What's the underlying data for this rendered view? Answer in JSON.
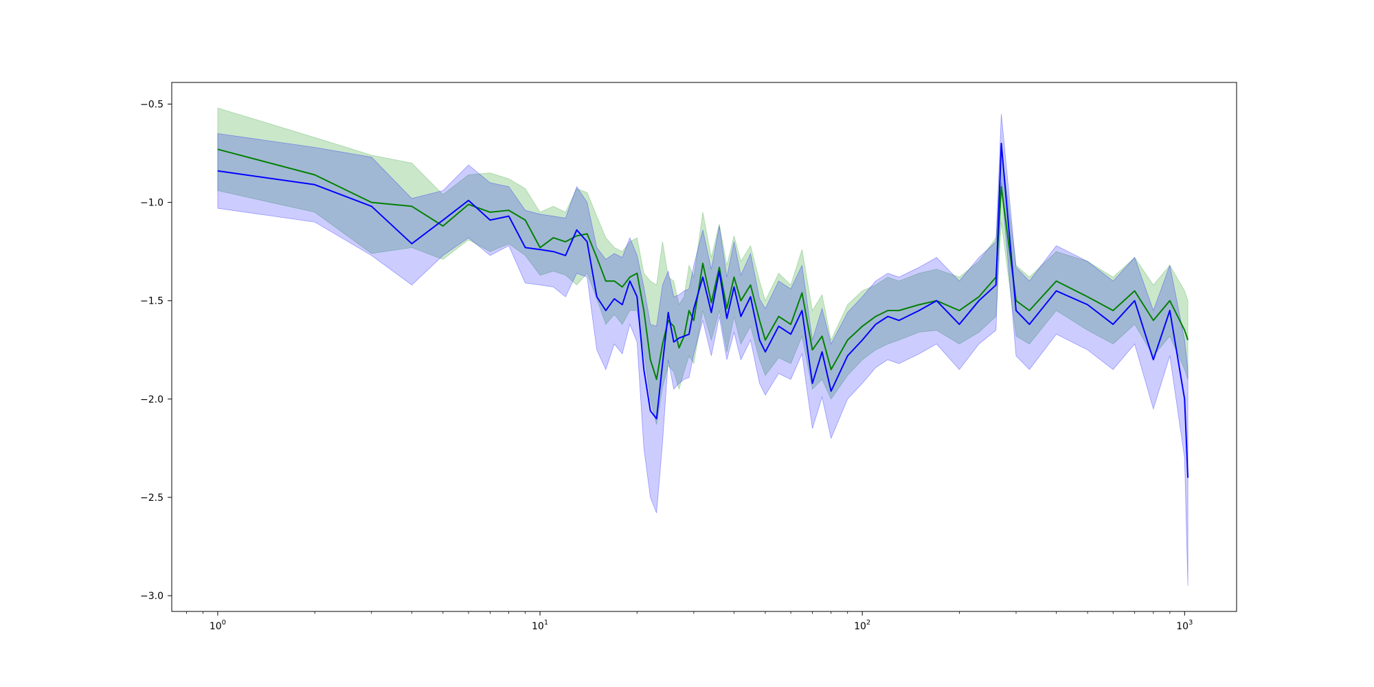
{
  "chart_data": {
    "type": "line",
    "xscale": "log",
    "xlim": [
      0.72,
      1450
    ],
    "ylim": [
      -3.08,
      -0.39
    ],
    "grid": false,
    "title": "",
    "xlabel": "",
    "ylabel": "",
    "x_ticks": [
      {
        "base": "10",
        "exp": "0",
        "value": 1
      },
      {
        "base": "10",
        "exp": "1",
        "value": 10
      },
      {
        "base": "10",
        "exp": "2",
        "value": 100
      },
      {
        "base": "10",
        "exp": "3",
        "value": 1000
      }
    ],
    "y_ticks": [
      {
        "label": "−0.5",
        "value": -0.5
      },
      {
        "label": "−1.0",
        "value": -1.0
      },
      {
        "label": "−1.5",
        "value": -1.5
      },
      {
        "label": "−2.0",
        "value": -2.0
      },
      {
        "label": "−2.5",
        "value": -2.5
      },
      {
        "label": "−3.0",
        "value": -3.0
      }
    ],
    "series": [
      {
        "color": "#008000",
        "band_color": "#2ca02c",
        "band_opacity": 0.25,
        "x": [
          1,
          2,
          3,
          4,
          5,
          6,
          7,
          8,
          9,
          10,
          11,
          12,
          13,
          14,
          15,
          16,
          17,
          18,
          19,
          20,
          21,
          22,
          23,
          24,
          25,
          26,
          27,
          28,
          29,
          30,
          32,
          34,
          36,
          38,
          40,
          42,
          45,
          48,
          50,
          55,
          60,
          65,
          70,
          75,
          80,
          90,
          100,
          110,
          120,
          130,
          150,
          170,
          200,
          230,
          260,
          270,
          300,
          330,
          400,
          500,
          600,
          700,
          800,
          900,
          1000,
          1024
        ],
        "y": [
          -0.73,
          -0.86,
          -1.0,
          -1.02,
          -1.12,
          -1.01,
          -1.05,
          -1.04,
          -1.09,
          -1.23,
          -1.18,
          -1.2,
          -1.17,
          -1.16,
          -1.28,
          -1.4,
          -1.4,
          -1.43,
          -1.38,
          -1.36,
          -1.55,
          -1.8,
          -1.9,
          -1.72,
          -1.6,
          -1.63,
          -1.74,
          -1.68,
          -1.55,
          -1.6,
          -1.31,
          -1.51,
          -1.33,
          -1.54,
          -1.38,
          -1.5,
          -1.42,
          -1.6,
          -1.7,
          -1.58,
          -1.62,
          -1.46,
          -1.75,
          -1.68,
          -1.85,
          -1.7,
          -1.63,
          -1.58,
          -1.55,
          -1.55,
          -1.52,
          -1.5,
          -1.55,
          -1.48,
          -1.38,
          -0.92,
          -1.5,
          -1.55,
          -1.4,
          -1.48,
          -1.55,
          -1.45,
          -1.6,
          -1.5,
          -1.65,
          -1.7
        ],
        "lower": [
          -0.94,
          -1.05,
          -1.26,
          -1.23,
          -1.29,
          -1.19,
          -1.25,
          -1.21,
          -1.27,
          -1.37,
          -1.35,
          -1.37,
          -1.42,
          -1.36,
          -1.49,
          -1.62,
          -1.57,
          -1.62,
          -1.55,
          -1.55,
          -1.76,
          -2.0,
          -2.13,
          -1.94,
          -1.83,
          -1.86,
          -1.95,
          -1.86,
          -1.78,
          -1.82,
          -1.55,
          -1.7,
          -1.55,
          -1.76,
          -1.58,
          -1.72,
          -1.63,
          -1.8,
          -1.88,
          -1.79,
          -1.82,
          -1.68,
          -1.95,
          -1.9,
          -2.0,
          -1.88,
          -1.8,
          -1.75,
          -1.72,
          -1.7,
          -1.66,
          -1.65,
          -1.72,
          -1.66,
          -1.58,
          -1.1,
          -1.68,
          -1.72,
          -1.55,
          -1.65,
          -1.72,
          -1.62,
          -1.78,
          -1.68,
          -1.85,
          -1.9
        ],
        "upper": [
          -0.52,
          -0.67,
          -0.76,
          -0.8,
          -0.96,
          -0.86,
          -0.85,
          -0.88,
          -0.93,
          -1.05,
          -1.02,
          -1.05,
          -0.93,
          -0.95,
          -1.07,
          -1.18,
          -1.23,
          -1.25,
          -1.2,
          -1.18,
          -1.36,
          -1.4,
          -1.42,
          -1.2,
          -1.38,
          -1.4,
          -1.52,
          -1.48,
          -1.32,
          -1.38,
          -1.05,
          -1.28,
          -1.11,
          -1.32,
          -1.17,
          -1.3,
          -1.22,
          -1.4,
          -1.5,
          -1.36,
          -1.42,
          -1.24,
          -1.55,
          -1.47,
          -1.7,
          -1.52,
          -1.45,
          -1.42,
          -1.38,
          -1.4,
          -1.36,
          -1.34,
          -1.38,
          -1.3,
          -1.18,
          -0.72,
          -1.32,
          -1.38,
          -1.25,
          -1.3,
          -1.38,
          -1.28,
          -1.42,
          -1.32,
          -1.45,
          -1.5
        ]
      },
      {
        "color": "#0000ff",
        "band_color": "#0000ff",
        "band_opacity": 0.2,
        "x": [
          1,
          2,
          3,
          4,
          5,
          6,
          7,
          8,
          9,
          10,
          11,
          12,
          13,
          14,
          15,
          16,
          17,
          18,
          19,
          20,
          21,
          22,
          23,
          24,
          25,
          26,
          27,
          28,
          29,
          30,
          32,
          34,
          36,
          38,
          40,
          42,
          45,
          48,
          50,
          55,
          60,
          65,
          70,
          75,
          80,
          90,
          100,
          110,
          120,
          130,
          150,
          170,
          200,
          230,
          260,
          270,
          300,
          330,
          400,
          500,
          600,
          700,
          800,
          900,
          1000,
          1024
        ],
        "y": [
          -0.84,
          -0.91,
          -1.02,
          -1.21,
          -1.09,
          -0.99,
          -1.09,
          -1.07,
          -1.23,
          -1.24,
          -1.25,
          -1.27,
          -1.14,
          -1.2,
          -1.48,
          -1.55,
          -1.49,
          -1.52,
          -1.4,
          -1.48,
          -1.85,
          -2.06,
          -2.1,
          -1.82,
          -1.56,
          -1.71,
          -1.69,
          -1.68,
          -1.67,
          -1.54,
          -1.38,
          -1.56,
          -1.35,
          -1.59,
          -1.43,
          -1.58,
          -1.48,
          -1.7,
          -1.76,
          -1.63,
          -1.67,
          -1.55,
          -1.92,
          -1.76,
          -1.96,
          -1.78,
          -1.7,
          -1.62,
          -1.58,
          -1.6,
          -1.55,
          -1.5,
          -1.62,
          -1.5,
          -1.42,
          -0.7,
          -1.55,
          -1.62,
          -1.45,
          -1.52,
          -1.62,
          -1.5,
          -1.8,
          -1.55,
          -2.0,
          -2.4
        ],
        "lower": [
          -1.03,
          -1.1,
          -1.27,
          -1.42,
          -1.27,
          -1.18,
          -1.27,
          -1.22,
          -1.41,
          -1.42,
          -1.43,
          -1.48,
          -1.36,
          -1.38,
          -1.75,
          -1.85,
          -1.72,
          -1.77,
          -1.62,
          -1.71,
          -2.25,
          -2.5,
          -2.58,
          -2.22,
          -1.8,
          -1.95,
          -1.92,
          -1.9,
          -1.89,
          -1.77,
          -1.6,
          -1.78,
          -1.58,
          -1.8,
          -1.66,
          -1.8,
          -1.7,
          -1.92,
          -1.98,
          -1.87,
          -1.9,
          -1.77,
          -2.15,
          -1.99,
          -2.2,
          -2.0,
          -1.92,
          -1.84,
          -1.8,
          -1.82,
          -1.77,
          -1.72,
          -1.85,
          -1.72,
          -1.65,
          -0.9,
          -1.78,
          -1.85,
          -1.67,
          -1.75,
          -1.85,
          -1.72,
          -2.05,
          -1.78,
          -2.3,
          -2.95
        ],
        "upper": [
          -0.65,
          -0.72,
          -0.77,
          -0.98,
          -0.94,
          -0.81,
          -0.9,
          -0.92,
          -1.04,
          -1.06,
          -1.07,
          -1.08,
          -0.92,
          -1.0,
          -1.23,
          -1.29,
          -1.26,
          -1.28,
          -1.18,
          -1.27,
          -1.43,
          -1.62,
          -1.63,
          -1.42,
          -1.35,
          -1.48,
          -1.47,
          -1.45,
          -1.44,
          -1.32,
          -1.14,
          -1.34,
          -1.12,
          -1.38,
          -1.2,
          -1.37,
          -1.26,
          -1.49,
          -1.54,
          -1.4,
          -1.44,
          -1.32,
          -1.7,
          -1.54,
          -1.72,
          -1.56,
          -1.48,
          -1.4,
          -1.36,
          -1.38,
          -1.33,
          -1.28,
          -1.4,
          -1.28,
          -1.2,
          -0.55,
          -1.33,
          -1.4,
          -1.22,
          -1.3,
          -1.4,
          -1.28,
          -1.55,
          -1.32,
          -1.7,
          -1.85
        ]
      }
    ]
  }
}
